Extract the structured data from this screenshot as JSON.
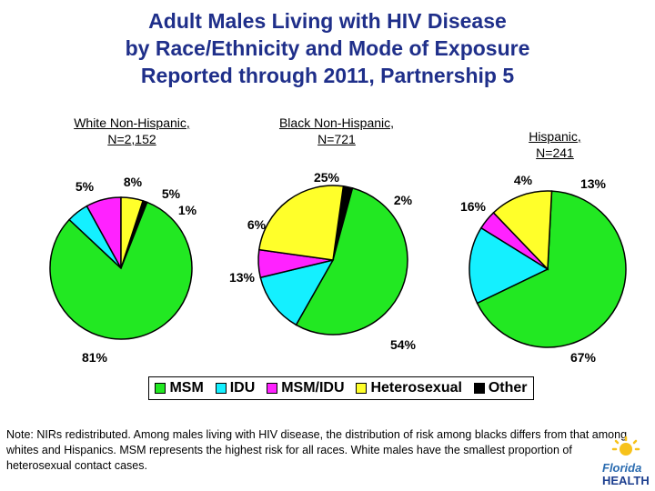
{
  "title": {
    "line1": "Adult Males Living with HIV Disease",
    "line2": "by Race/Ethnicity and Mode of Exposure",
    "line3": "Reported through 2011, Partnership 5"
  },
  "colors": {
    "MSM": "#22e822",
    "IDU": "#14f0ff",
    "MSM/IDU": "#ff22ff",
    "Heterosexual": "#ffff2a",
    "Other": "#000000"
  },
  "chart_data": [
    {
      "type": "pie",
      "title_line1": "White Non-Hispanic,",
      "title_line2": "N=2,152",
      "slices": [
        {
          "name": "MSM",
          "value": 81,
          "label": "81%"
        },
        {
          "name": "IDU",
          "value": 5,
          "label": "5%"
        },
        {
          "name": "MSM/IDU",
          "value": 8,
          "label": "8%"
        },
        {
          "name": "Heterosexual",
          "value": 5,
          "label": "5%"
        },
        {
          "name": "Other",
          "value": 1,
          "label": "1%"
        }
      ]
    },
    {
      "type": "pie",
      "title_line1": "Black Non-Hispanic,",
      "title_line2": "N=721",
      "slices": [
        {
          "name": "MSM",
          "value": 54,
          "label": "54%"
        },
        {
          "name": "IDU",
          "value": 13,
          "label": "13%"
        },
        {
          "name": "MSM/IDU",
          "value": 6,
          "label": "6%"
        },
        {
          "name": "Heterosexual",
          "value": 25,
          "label": "25%"
        },
        {
          "name": "Other",
          "value": 2,
          "label": "2%"
        }
      ]
    },
    {
      "type": "pie",
      "title_line1": "Hispanic,",
      "title_line2": "N=241",
      "slices": [
        {
          "name": "MSM",
          "value": 67,
          "label": "67%"
        },
        {
          "name": "IDU",
          "value": 16,
          "label": "16%"
        },
        {
          "name": "MSM/IDU",
          "value": 4,
          "label": "4%"
        },
        {
          "name": "Heterosexual",
          "value": 13,
          "label": "13%"
        },
        {
          "name": "Other",
          "value": 0,
          "label": ""
        }
      ]
    }
  ],
  "legend": [
    "MSM",
    "IDU",
    "MSM/IDU",
    "Heterosexual",
    "Other"
  ],
  "note": "Note: NIRs redistributed.  Among males living with HIV disease, the distribution of risk among blacks differs from that among whites and Hispanics.  MSM represents the highest risk for all races.  White males have the smallest proportion of heterosexual contact cases.",
  "logo": {
    "line1": "Florida",
    "line2": "HEALTH"
  }
}
